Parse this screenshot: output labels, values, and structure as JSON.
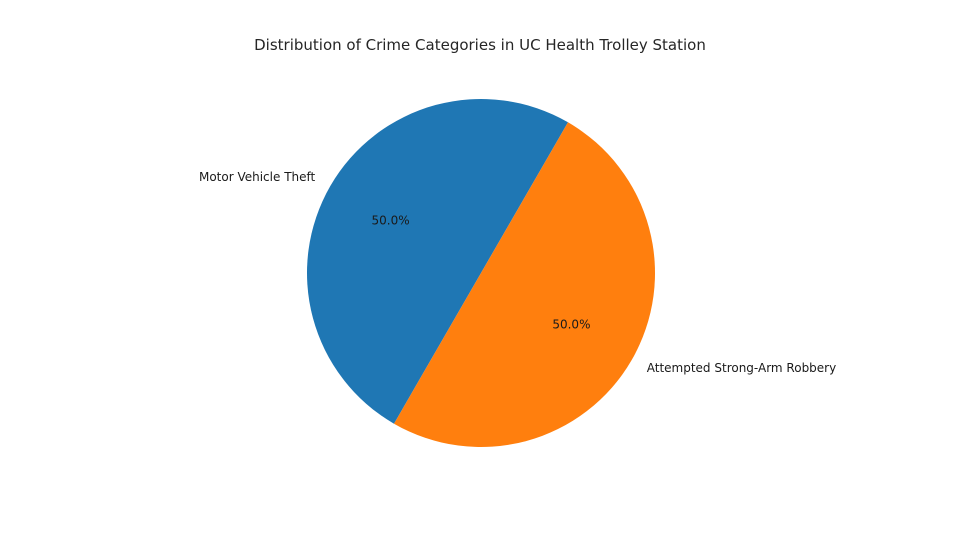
{
  "chart_data": {
    "type": "pie",
    "title": "Distribution of Crime Categories in UC Health Trolley Station",
    "categories": [
      "Motor Vehicle Theft",
      "Attempted Strong-Arm Robbery"
    ],
    "values": [
      50.0,
      50.0
    ],
    "percent_labels": [
      "50.0%",
      "50.0%"
    ],
    "colors": [
      "#1f77b4",
      "#ff7f0e"
    ],
    "legend": "none"
  }
}
